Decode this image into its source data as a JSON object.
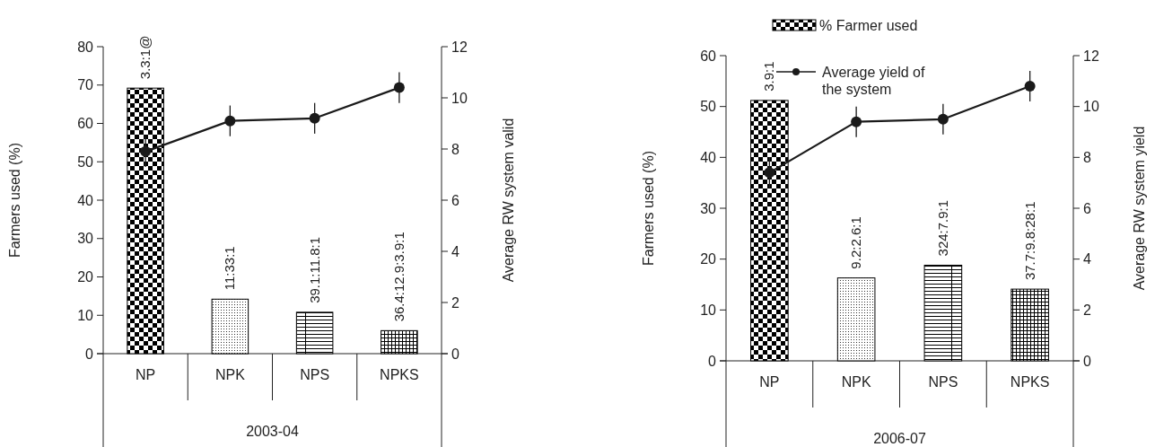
{
  "chart_data": [
    {
      "type": "bar",
      "categories": [
        "NP",
        "NPK",
        "NPS",
        "NPKS"
      ],
      "xlabel": "2003-04",
      "ylabel": "Farmers used (%)",
      "y2label": "Average RW system valid",
      "ylim": [
        0,
        80
      ],
      "yticks": [
        0,
        10,
        20,
        30,
        40,
        50,
        60,
        70,
        80
      ],
      "y2lim": [
        0,
        12
      ],
      "y2ticks": [
        0,
        2,
        4,
        6,
        8,
        10,
        12
      ],
      "marker": "circle",
      "series": [
        {
          "color": "#000000",
          "values": [
            69.2,
            14.2,
            10.8,
            6.0
          ],
          "value_labels": [
            "3.3:1@",
            "11:33:1",
            "39.1:11.8:1",
            "36.4:12.9:3.9:1"
          ]
        },
        {
          "type": "line",
          "axis": "y2",
          "color": "#1a1a1a",
          "values": [
            7.9,
            9.1,
            9.2,
            10.4
          ],
          "errors": [
            0.6,
            0.6,
            0.6,
            0.6
          ]
        }
      ]
    },
    {
      "type": "bar",
      "categories": [
        "NP",
        "NPK",
        "NPS",
        "NPKS"
      ],
      "xlabel": "2006-07",
      "ylabel": "Farmers used (%)",
      "y2label": "Average RW system yield",
      "ylim": [
        0,
        60
      ],
      "yticks": [
        0,
        10,
        20,
        30,
        40,
        50,
        60
      ],
      "y2lim": [
        0,
        12
      ],
      "y2ticks": [
        0,
        2,
        4,
        6,
        8,
        10,
        12
      ],
      "marker": "circle",
      "legend": "top",
      "series": [
        {
          "name": "% Farmer used",
          "color": "#000000",
          "values": [
            51.2,
            16.3,
            18.8,
            14.1
          ],
          "value_labels": [
            "3.9:1",
            "9.2:2.6:1",
            "324:7.9:1",
            "37.7:9.8:28:1"
          ]
        },
        {
          "type": "line",
          "name": "Average yield of the system",
          "axis": "y2",
          "color": "#1a1a1a",
          "values": [
            7.4,
            9.4,
            9.5,
            10.8
          ],
          "errors": [
            0.6,
            0.6,
            0.6,
            0.6
          ]
        }
      ]
    }
  ]
}
